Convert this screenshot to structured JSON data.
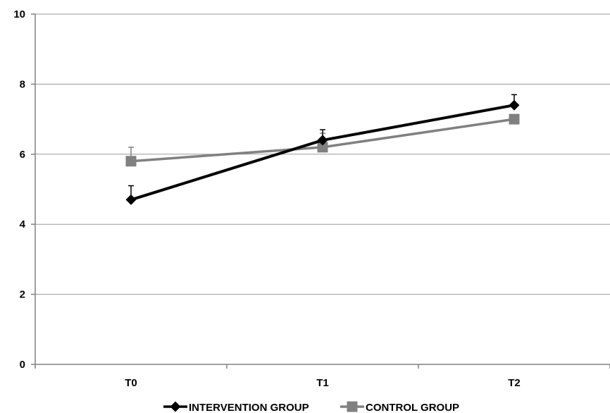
{
  "chart_data": {
    "type": "line",
    "title": "",
    "xlabel": "",
    "ylabel": "",
    "categories": [
      "T0",
      "T1",
      "T2"
    ],
    "ylim": [
      0,
      10
    ],
    "yticks": [
      "0",
      "2",
      "4",
      "6",
      "8",
      "10"
    ],
    "grid": true,
    "legend_position": "bottom",
    "series": [
      {
        "name": "INTERVENTION GROUP",
        "values": [
          4.7,
          6.4,
          7.4
        ],
        "errors": [
          0.4,
          0.3,
          0.3
        ],
        "color": "#000000",
        "marker": "diamond"
      },
      {
        "name": "CONTROL GROUP",
        "values": [
          5.8,
          6.2,
          7.0
        ],
        "errors": [
          0.4,
          0.4,
          0.0
        ],
        "color": "#808080",
        "marker": "square"
      }
    ]
  }
}
